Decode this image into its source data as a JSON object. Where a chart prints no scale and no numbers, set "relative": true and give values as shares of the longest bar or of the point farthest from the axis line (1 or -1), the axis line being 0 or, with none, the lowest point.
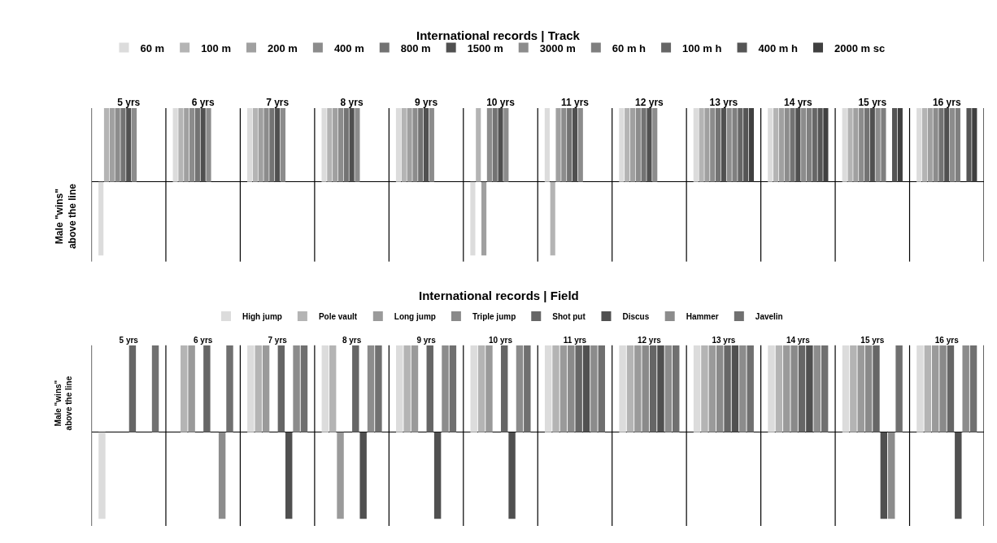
{
  "chart_data": [
    {
      "type": "bar",
      "title": "International records | Track",
      "ylabel": "Male \"wins\"\nabove the line",
      "relative": true,
      "legend": "top",
      "grid": "x",
      "categories": [
        "5 yrs",
        "6 yrs",
        "7 yrs",
        "8 yrs",
        "9 yrs",
        "10 yrs",
        "11 yrs",
        "12 yrs",
        "13 yrs",
        "14 yrs",
        "15 yrs",
        "16 yrs"
      ],
      "series": [
        {
          "name": "60 m",
          "color": "#dcdcdc",
          "values": [
            -1,
            1,
            1,
            1,
            1,
            -1,
            1,
            1,
            1,
            1,
            1,
            1
          ]
        },
        {
          "name": "100 m",
          "color": "#b4b4b4",
          "values": [
            1,
            1,
            1,
            1,
            1,
            1,
            -1,
            1,
            1,
            1,
            1,
            1
          ]
        },
        {
          "name": "200 m",
          "color": "#a0a0a0",
          "values": [
            1,
            1,
            1,
            1,
            1,
            -1,
            1,
            1,
            1,
            1,
            1,
            1
          ]
        },
        {
          "name": "400 m",
          "color": "#8c8c8c",
          "values": [
            1,
            1,
            1,
            1,
            1,
            1,
            1,
            1,
            1,
            1,
            1,
            1
          ]
        },
        {
          "name": "800 m",
          "color": "#737373",
          "values": [
            1,
            1,
            1,
            1,
            1,
            1,
            1,
            1,
            1,
            1,
            1,
            1
          ]
        },
        {
          "name": "1500 m",
          "color": "#505050",
          "values": [
            1,
            1,
            1,
            1,
            1,
            1,
            1,
            1,
            1,
            1,
            1,
            1
          ]
        },
        {
          "name": "3000 m",
          "color": "#8c8c8c",
          "values": [
            1,
            1,
            1,
            1,
            1,
            1,
            1,
            1,
            1,
            1,
            1,
            1
          ]
        },
        {
          "name": "60 m h",
          "color": "#7f7f7f",
          "values": [
            null,
            null,
            null,
            null,
            null,
            null,
            null,
            null,
            1,
            1,
            1,
            1
          ]
        },
        {
          "name": "100 m h",
          "color": "#666666",
          "values": [
            null,
            null,
            null,
            null,
            null,
            null,
            null,
            null,
            1,
            1,
            null,
            null
          ]
        },
        {
          "name": "400 m h",
          "color": "#555555",
          "values": [
            null,
            null,
            null,
            null,
            null,
            null,
            null,
            null,
            1,
            1,
            1,
            1
          ]
        },
        {
          "name": "2000 m sc",
          "color": "#404040",
          "values": [
            null,
            null,
            null,
            null,
            null,
            null,
            null,
            null,
            1,
            1,
            1,
            1
          ]
        }
      ]
    },
    {
      "type": "bar",
      "title": "International records | Field",
      "ylabel": "Male \"wins\"\nabove the line",
      "relative": true,
      "legend": "top",
      "grid": "x",
      "categories": [
        "5 yrs",
        "6 yrs",
        "7 yrs",
        "8 yrs",
        "9 yrs",
        "10 yrs",
        "11 yrs",
        "12 yrs",
        "13 yrs",
        "14 yrs",
        "15 yrs",
        "16 yrs"
      ],
      "series": [
        {
          "name": "High jump",
          "color": "#dcdcdc",
          "values": [
            -1,
            null,
            1,
            1,
            1,
            1,
            1,
            1,
            1,
            1,
            1,
            1
          ]
        },
        {
          "name": "Pole vault",
          "color": "#b4b4b4",
          "values": [
            null,
            1,
            1,
            1,
            1,
            1,
            1,
            1,
            1,
            1,
            1,
            1
          ]
        },
        {
          "name": "Long jump",
          "color": "#9a9a9a",
          "values": [
            null,
            1,
            1,
            -1,
            1,
            1,
            1,
            1,
            1,
            1,
            1,
            1
          ]
        },
        {
          "name": "Triple jump",
          "color": "#8a8a8a",
          "values": [
            null,
            null,
            null,
            null,
            null,
            null,
            1,
            1,
            1,
            1,
            1,
            1
          ]
        },
        {
          "name": "Shot put",
          "color": "#666666",
          "values": [
            1,
            1,
            1,
            1,
            1,
            1,
            1,
            1,
            1,
            1,
            1,
            1
          ]
        },
        {
          "name": "Discus",
          "color": "#505050",
          "values": [
            null,
            null,
            -1,
            -1,
            -1,
            -1,
            1,
            1,
            1,
            1,
            -1,
            -1
          ]
        },
        {
          "name": "Hammer",
          "color": "#8c8c8c",
          "values": [
            null,
            -1,
            1,
            1,
            1,
            1,
            1,
            1,
            1,
            1,
            -1,
            1
          ]
        },
        {
          "name": "Javelin",
          "color": "#707070",
          "values": [
            1,
            1,
            1,
            1,
            1,
            1,
            1,
            1,
            1,
            1,
            1,
            1
          ]
        }
      ]
    }
  ]
}
